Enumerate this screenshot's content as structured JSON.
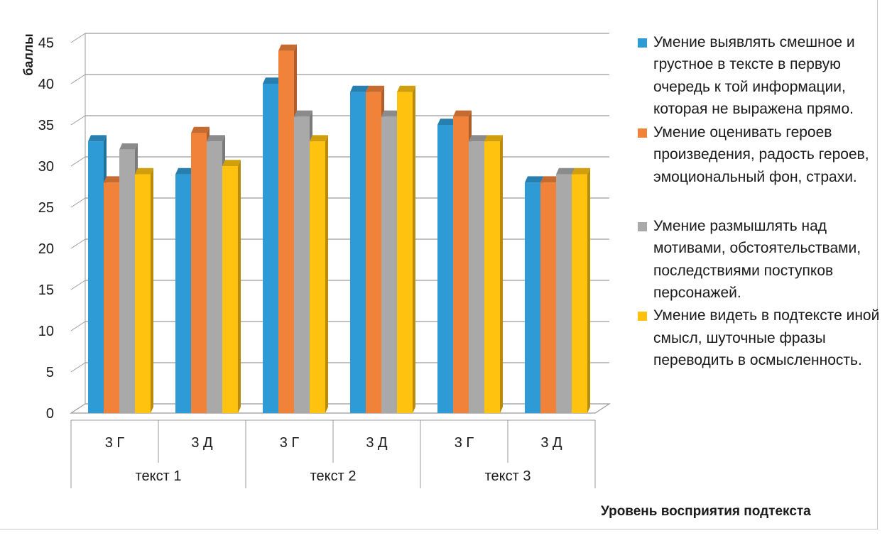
{
  "chart_data": {
    "type": "bar",
    "title": "",
    "ylabel": "баллы",
    "xlabel": "Уровень восприятия подтекста",
    "ylim": [
      0,
      45
    ],
    "yticks": [
      0,
      5,
      10,
      15,
      20,
      25,
      30,
      35,
      40,
      45
    ],
    "grid": true,
    "legend_position": "right",
    "groups": [
      "текст 1",
      "текст 2",
      "текст 3"
    ],
    "categories": [
      "3 Г",
      "3 Д",
      "3 Г",
      "3 Д",
      "3 Г",
      "3 Д"
    ],
    "series": [
      {
        "name": "Умение  выявлять смешное и грустное в тексте в первую очередь к той информации, которая не выражена прямо.",
        "color": "#2e9bd6",
        "values": [
          33,
          29,
          40,
          39,
          35,
          28
        ]
      },
      {
        "name": "Умение оценивать героев произведения, радость героев, эмоциональный фон, страхи.",
        "color": "#f0823a",
        "values": [
          28,
          34,
          44,
          39,
          36,
          28
        ]
      },
      {
        "name": "Умение размышлять над мотивами, обстоятельствами, последствиями поступков персонажей.",
        "color": "#a9a9a9",
        "values": [
          32,
          33,
          36,
          36,
          33,
          29
        ]
      },
      {
        "name": " Умение видеть в подтексте иной смысл, шуточные фразы переводить в осмысленность.",
        "color": "#ffc20e",
        "values": [
          29,
          30,
          33,
          39,
          33,
          29
        ]
      }
    ]
  }
}
